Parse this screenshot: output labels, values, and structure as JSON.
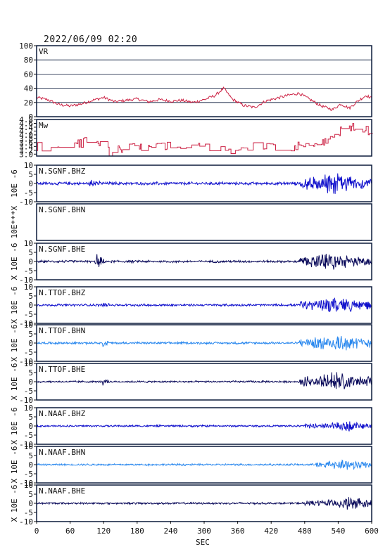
{
  "header": {
    "timestamp": "2022/06/09 02:20"
  },
  "colors": {
    "frame": "#0b1a3a",
    "vr": "#cc2244",
    "mw": "#cc2244",
    "BHZ": "#1010cc",
    "BHN": "#2a88ee",
    "BHE": "#0a0a5a",
    "grid": "#0b1a3a"
  },
  "chart_data": {
    "type": "line",
    "xlabel": "SEC",
    "xlim": [
      0,
      600
    ],
    "xticks": [
      0,
      60,
      120,
      180,
      240,
      300,
      360,
      420,
      480,
      540,
      600
    ],
    "panels": [
      {
        "id": "vr",
        "label": "VR",
        "ylim": [
          0,
          100
        ],
        "yticks": [
          0,
          20,
          40,
          60,
          80,
          100
        ],
        "grid": true,
        "series": {
          "x": [
            0,
            20,
            40,
            60,
            80,
            100,
            120,
            140,
            160,
            180,
            200,
            220,
            240,
            260,
            280,
            300,
            320,
            335,
            350,
            370,
            390,
            410,
            430,
            450,
            470,
            490,
            510,
            530,
            545,
            560,
            575,
            590,
            600
          ],
          "y": [
            27,
            24,
            17,
            15,
            18,
            23,
            27,
            21,
            23,
            25,
            21,
            24,
            22,
            23,
            20,
            24,
            30,
            40,
            25,
            16,
            13,
            22,
            26,
            30,
            33,
            24,
            15,
            10,
            18,
            12,
            22,
            30,
            26
          ]
        }
      },
      {
        "id": "mw",
        "label": "Mw",
        "ylim": [
          2.9,
          4.8
        ],
        "yticks": [
          3.0,
          3.2,
          3.4,
          3.6,
          3.8,
          4.0,
          4.2,
          4.4,
          4.6,
          4.8
        ],
        "ytick_labels": [
          "3.0",
          "3.2",
          "3.4",
          "3.6",
          "3.8",
          "4.0",
          "4.2",
          "4.4",
          "4.6",
          "4.8"
        ],
        "grid": false,
        "series": {
          "x": [
            0,
            30,
            60,
            80,
            100,
            115,
            130,
            150,
            170,
            200,
            230,
            255,
            275,
            300,
            320,
            340,
            360,
            380,
            400,
            420,
            440,
            460,
            475,
            490,
            505,
            520,
            535,
            550,
            570,
            590,
            600
          ],
          "y": [
            3.4,
            3.3,
            3.5,
            3.6,
            3.7,
            3.4,
            3.1,
            3.3,
            3.4,
            3.3,
            3.4,
            3.5,
            3.4,
            3.3,
            3.2,
            3.1,
            3.2,
            3.3,
            3.5,
            3.4,
            3.5,
            3.4,
            3.5,
            3.6,
            3.4,
            3.7,
            4.0,
            4.4,
            4.5,
            4.3,
            4.1
          ]
        }
      }
    ],
    "traces": [
      {
        "station": "N.SGNF.BHZ",
        "component": "BHZ",
        "ylim": [
          -10,
          10
        ],
        "yticks": [
          -10,
          -5,
          0,
          5,
          10
        ],
        "unit_label": "10E -6",
        "onsets": [
          [
            95,
            115,
            3.5
          ],
          [
            470,
            600,
            4.5
          ]
        ],
        "peak_x": 530,
        "noise": 0.8
      },
      {
        "station": "N.SGNF.BHN",
        "component": "BHN",
        "ylim": null,
        "yticks": [],
        "unit_label": "10E***X",
        "onsets": [],
        "peak_x": 0,
        "noise": 0
      },
      {
        "station": "N.SGNF.BHE",
        "component": "BHE",
        "ylim": [
          -10,
          10
        ],
        "yticks": [
          -10,
          -5,
          0,
          5,
          10
        ],
        "unit_label": "X 10E -6",
        "onsets": [
          [
            105,
            125,
            6.0
          ],
          [
            470,
            600,
            3.8
          ]
        ],
        "peak_x": 525,
        "noise": 0.6
      },
      {
        "station": "N.TTOF.BHZ",
        "component": "BHZ",
        "ylim": [
          -10,
          10
        ],
        "yticks": [
          -10,
          -5,
          0,
          5,
          10
        ],
        "unit_label": "X 10E -6",
        "onsets": [
          [
            118,
            130,
            1.5
          ],
          [
            470,
            600,
            3.8
          ]
        ],
        "peak_x": 535,
        "noise": 0.6
      },
      {
        "station": "N.TTOF.BHN",
        "component": "BHN",
        "ylim": [
          -10,
          10
        ],
        "yticks": [
          -10,
          -5,
          0,
          5,
          10
        ],
        "unit_label": "X 10E -6",
        "onsets": [
          [
            118,
            130,
            2.0
          ],
          [
            470,
            600,
            4.2
          ]
        ],
        "peak_x": 535,
        "noise": 0.6
      },
      {
        "station": "N.TTOF.BHE",
        "component": "BHE",
        "ylim": [
          -10,
          10
        ],
        "yticks": [
          -10,
          -5,
          0,
          5,
          10
        ],
        "unit_label": "X 10E -6",
        "onsets": [
          [
            118,
            130,
            1.5
          ],
          [
            470,
            600,
            4.5
          ]
        ],
        "peak_x": 535,
        "noise": 0.5
      },
      {
        "station": "N.NAAF.BHZ",
        "component": "BHZ",
        "ylim": [
          -10,
          10
        ],
        "yticks": [
          -10,
          -5,
          0,
          5,
          10
        ],
        "unit_label": "X 10E -6",
        "onsets": [
          [
            480,
            600,
            2.2
          ]
        ],
        "peak_x": 555,
        "noise": 0.5
      },
      {
        "station": "N.NAAF.BHN",
        "component": "BHN",
        "ylim": [
          -10,
          10
        ],
        "yticks": [
          -10,
          -5,
          0,
          5,
          10
        ],
        "unit_label": "X 10E -6",
        "onsets": [
          [
            500,
            600,
            2.2
          ]
        ],
        "peak_x": 560,
        "noise": 0.5
      },
      {
        "station": "N.NAAF.BHE",
        "component": "BHE",
        "ylim": [
          -10,
          10
        ],
        "yticks": [
          -10,
          -5,
          0,
          5,
          10
        ],
        "unit_label": "X 10E -6",
        "onsets": [
          [
            480,
            600,
            2.5
          ]
        ],
        "peak_x": 560,
        "noise": 0.5
      }
    ]
  }
}
